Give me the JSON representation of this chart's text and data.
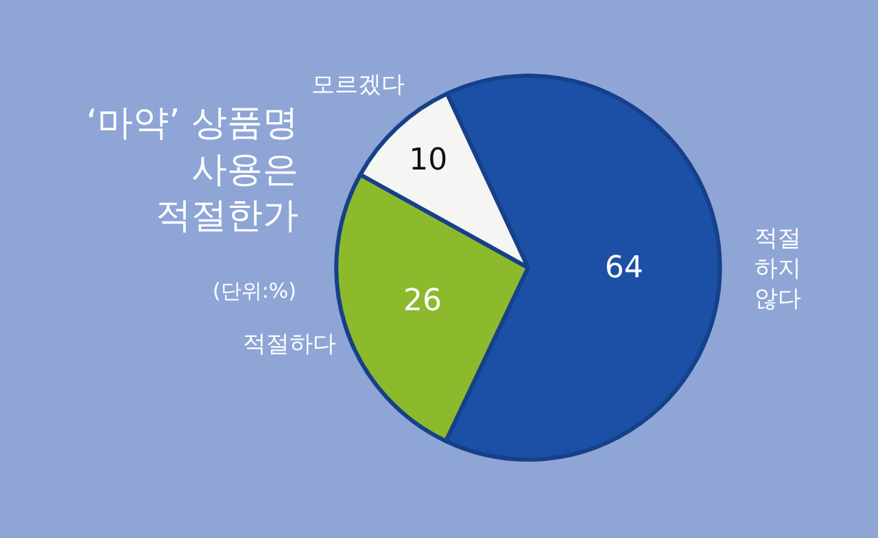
{
  "chart_data": {
    "type": "pie",
    "title": "‘마약’ 상품명\n사용은\n적절한가",
    "subtitle": "(단위:%)",
    "categories": [
      "적절\n하지\n않다",
      "적절하다",
      "모르겠다"
    ],
    "values": [
      64,
      26,
      10
    ],
    "colors": [
      "#1c4fa6",
      "#8cba2c",
      "#f5f5f3"
    ],
    "data_labels": true,
    "legend": false
  }
}
